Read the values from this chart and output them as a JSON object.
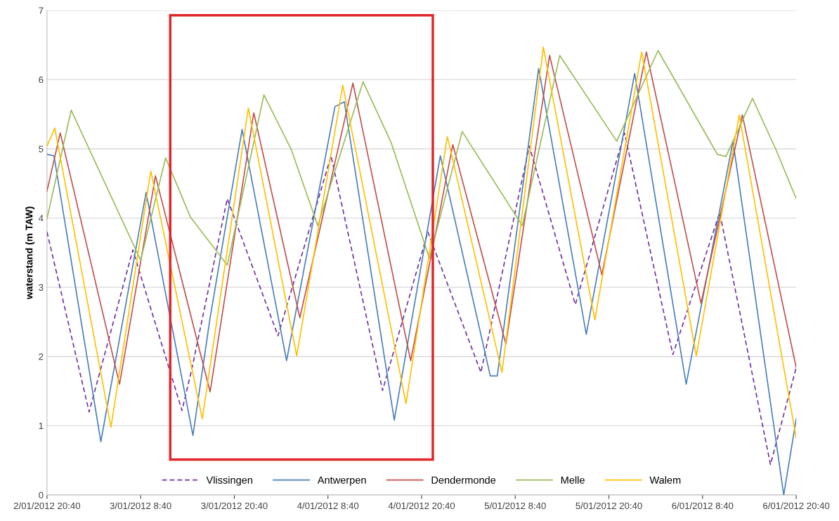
{
  "chart_data": {
    "type": "line",
    "ylabel": "waterstand (m TAW)",
    "xlim": [
      "2012-01-02T20:40",
      "2012-01-06T20:40"
    ],
    "ylim": [
      0,
      7
    ],
    "yticks": [
      0,
      1,
      2,
      3,
      4,
      5,
      6,
      7
    ],
    "xticks": [
      {
        "value": "2012-01-02T20:40",
        "label": "2/01/2012 20:40"
      },
      {
        "value": "2012-01-03T08:40",
        "label": "3/01/2012 8:40"
      },
      {
        "value": "2012-01-03T20:40",
        "label": "3/01/2012 20:40"
      },
      {
        "value": "2012-01-04T08:40",
        "label": "4/01/2012 8:40"
      },
      {
        "value": "2012-01-04T20:40",
        "label": "4/01/2012 20:40"
      },
      {
        "value": "2012-01-05T08:40",
        "label": "5/01/2012 8:40"
      },
      {
        "value": "2012-01-05T20:40",
        "label": "5/01/2012 20:40"
      },
      {
        "value": "2012-01-06T08:40",
        "label": "6/01/2012 8:40"
      },
      {
        "value": "2012-01-06T20:40",
        "label": "6/01/2012 20:40"
      }
    ],
    "grid": "y",
    "legend": "bottom",
    "series": [
      {
        "name": "Vlissingen",
        "color": "#7030a0",
        "line_style": "dashed",
        "x": [
          "2012-01-02T20:40",
          "2012-01-03T02:04",
          "2012-01-03T07:40",
          "2012-01-03T13:58",
          "2012-01-03T15:16",
          "2012-01-03T19:46",
          "2012-01-04T02:16",
          "2012-01-04T09:04",
          "2012-01-04T15:40",
          "2012-01-04T21:28",
          "2012-01-05T04:16",
          "2012-01-05T10:28",
          "2012-01-05T16:22",
          "2012-01-05T22:40",
          "2012-01-06T04:52",
          "2012-01-06T10:52",
          "2012-01-06T17:22",
          "2012-01-06T20:40"
        ],
        "values": [
          3.8,
          1.2,
          3.54,
          1.22,
          1.84,
          4.28,
          2.3,
          4.9,
          1.51,
          3.8,
          1.77,
          5.04,
          2.75,
          5.23,
          2.03,
          4.08,
          0.44,
          1.84
        ]
      },
      {
        "name": "Antwerpen",
        "color": "#4a7ebb",
        "x": [
          "2012-01-02T20:40",
          "2012-01-02T21:34",
          "2012-01-03T03:34",
          "2012-01-03T09:22",
          "2012-01-03T15:22",
          "2012-01-03T17:34",
          "2012-01-03T21:40",
          "2012-01-04T03:22",
          "2012-01-04T09:34",
          "2012-01-04T10:46",
          "2012-01-04T17:10",
          "2012-01-04T23:04",
          "2012-01-05T05:28",
          "2012-01-05T06:22",
          "2012-01-05T11:40",
          "2012-01-05T17:46",
          "2012-01-05T23:58",
          "2012-01-06T06:34",
          "2012-01-06T12:34",
          "2012-01-06T19:04",
          "2012-01-06T20:40"
        ],
        "values": [
          4.92,
          4.9,
          0.77,
          4.37,
          0.86,
          2.56,
          5.28,
          1.94,
          5.61,
          5.68,
          1.08,
          4.9,
          1.72,
          1.72,
          6.16,
          2.32,
          6.09,
          1.6,
          5.11,
          0.0,
          1.1
        ]
      },
      {
        "name": "Dendermonde",
        "color": "#c0504d",
        "x": [
          "2012-01-02T20:40",
          "2012-01-02T22:22",
          "2012-01-03T05:58",
          "2012-01-03T10:34",
          "2012-01-03T17:34",
          "2012-01-03T23:10",
          "2012-01-04T05:04",
          "2012-01-04T11:52",
          "2012-01-04T19:16",
          "2012-01-05T00:40",
          "2012-01-05T07:28",
          "2012-01-05T13:04",
          "2012-01-05T19:46",
          "2012-01-06T01:28",
          "2012-01-06T08:28",
          "2012-01-06T13:46",
          "2012-01-06T20:40"
        ],
        "values": [
          4.39,
          5.23,
          1.6,
          4.61,
          1.49,
          5.52,
          2.56,
          5.95,
          1.94,
          5.06,
          2.18,
          6.35,
          3.18,
          6.4,
          2.77,
          5.49,
          1.84
        ]
      },
      {
        "name": "Melle",
        "color": "#9bbb59",
        "x": [
          "2012-01-02T20:40",
          "2012-01-02T23:46",
          "2012-01-03T08:40",
          "2012-01-03T11:52",
          "2012-01-03T15:04",
          "2012-01-03T19:46",
          "2012-01-04T00:28",
          "2012-01-04T03:58",
          "2012-01-04T07:22",
          "2012-01-04T13:10",
          "2012-01-04T16:46",
          "2012-01-04T21:40",
          "2012-01-05T01:52",
          "2012-01-05T09:34",
          "2012-01-05T14:22",
          "2012-01-05T21:40",
          "2012-01-06T02:58",
          "2012-01-06T10:34",
          "2012-01-06T11:40",
          "2012-01-06T15:04",
          "2012-01-06T18:04",
          "2012-01-06T20:40"
        ],
        "values": [
          3.99,
          5.56,
          3.39,
          4.87,
          4.01,
          3.32,
          5.78,
          4.99,
          3.89,
          5.97,
          5.09,
          3.42,
          5.25,
          3.89,
          6.35,
          5.11,
          6.42,
          4.92,
          4.89,
          5.73,
          4.99,
          4.28
        ]
      },
      {
        "name": "Walem",
        "color": "#ffc000",
        "x": [
          "2012-01-02T20:40",
          "2012-01-02T21:40",
          "2012-01-03T04:52",
          "2012-01-03T09:58",
          "2012-01-03T16:34",
          "2012-01-03T22:28",
          "2012-01-04T04:40",
          "2012-01-04T10:34",
          "2012-01-04T18:40",
          "2012-01-04T23:58",
          "2012-01-05T06:58",
          "2012-01-05T12:16",
          "2012-01-05T18:52",
          "2012-01-06T00:52",
          "2012-01-06T07:52",
          "2012-01-06T13:22",
          "2012-01-06T20:40"
        ],
        "values": [
          5.04,
          5.3,
          0.98,
          4.68,
          1.1,
          5.59,
          2.01,
          5.92,
          1.32,
          5.18,
          1.77,
          6.47,
          2.53,
          6.4,
          2.01,
          5.49,
          0.82
        ]
      }
    ]
  }
}
